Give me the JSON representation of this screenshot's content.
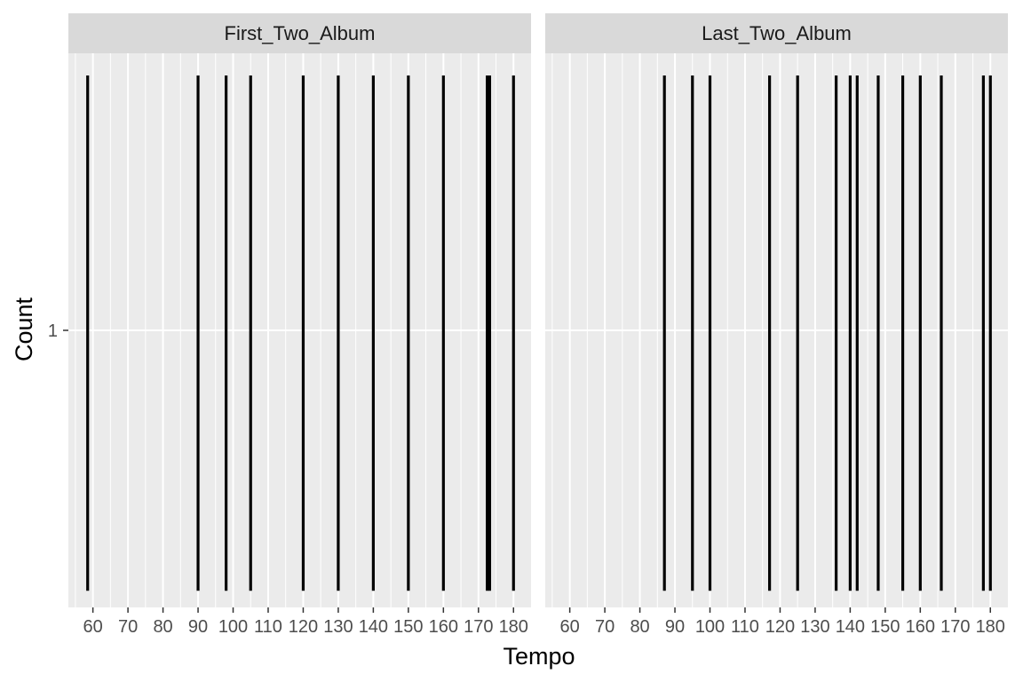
{
  "chart_data": {
    "type": "histogram",
    "xlabel": "Tempo",
    "ylabel": "Count",
    "xlim": [
      53,
      185
    ],
    "ylim": [
      0,
      2
    ],
    "x_ticks": [
      60,
      70,
      80,
      90,
      100,
      110,
      120,
      130,
      140,
      150,
      160,
      170,
      180
    ],
    "x_tick_labels": [
      "60",
      "70",
      "80",
      "90",
      "100",
      "110",
      "120",
      "130",
      "140",
      "150",
      "160",
      "170",
      "180"
    ],
    "y_ticks": [
      1
    ],
    "y_tick_labels": [
      "1"
    ],
    "grid": true,
    "bar_color": "#000000",
    "panel_background": "#ebebeb",
    "strip_background": "#d9d9d9",
    "panels": [
      {
        "label": "First_Two_Album",
        "tempos": [
          58.5,
          90,
          98,
          105,
          120,
          130,
          140,
          150,
          160,
          172.5,
          173.2,
          180
        ],
        "counts": [
          1,
          1,
          1,
          1,
          1,
          1,
          1,
          1,
          1,
          1,
          1,
          1
        ]
      },
      {
        "label": "Last_Two_Album",
        "tempos": [
          87,
          95,
          100,
          117,
          125,
          136,
          140,
          142,
          148,
          155,
          160,
          166,
          178,
          180
        ],
        "counts": [
          1,
          1,
          1,
          1,
          1,
          1,
          1,
          1,
          1,
          1,
          1,
          1,
          1,
          1
        ]
      }
    ]
  }
}
